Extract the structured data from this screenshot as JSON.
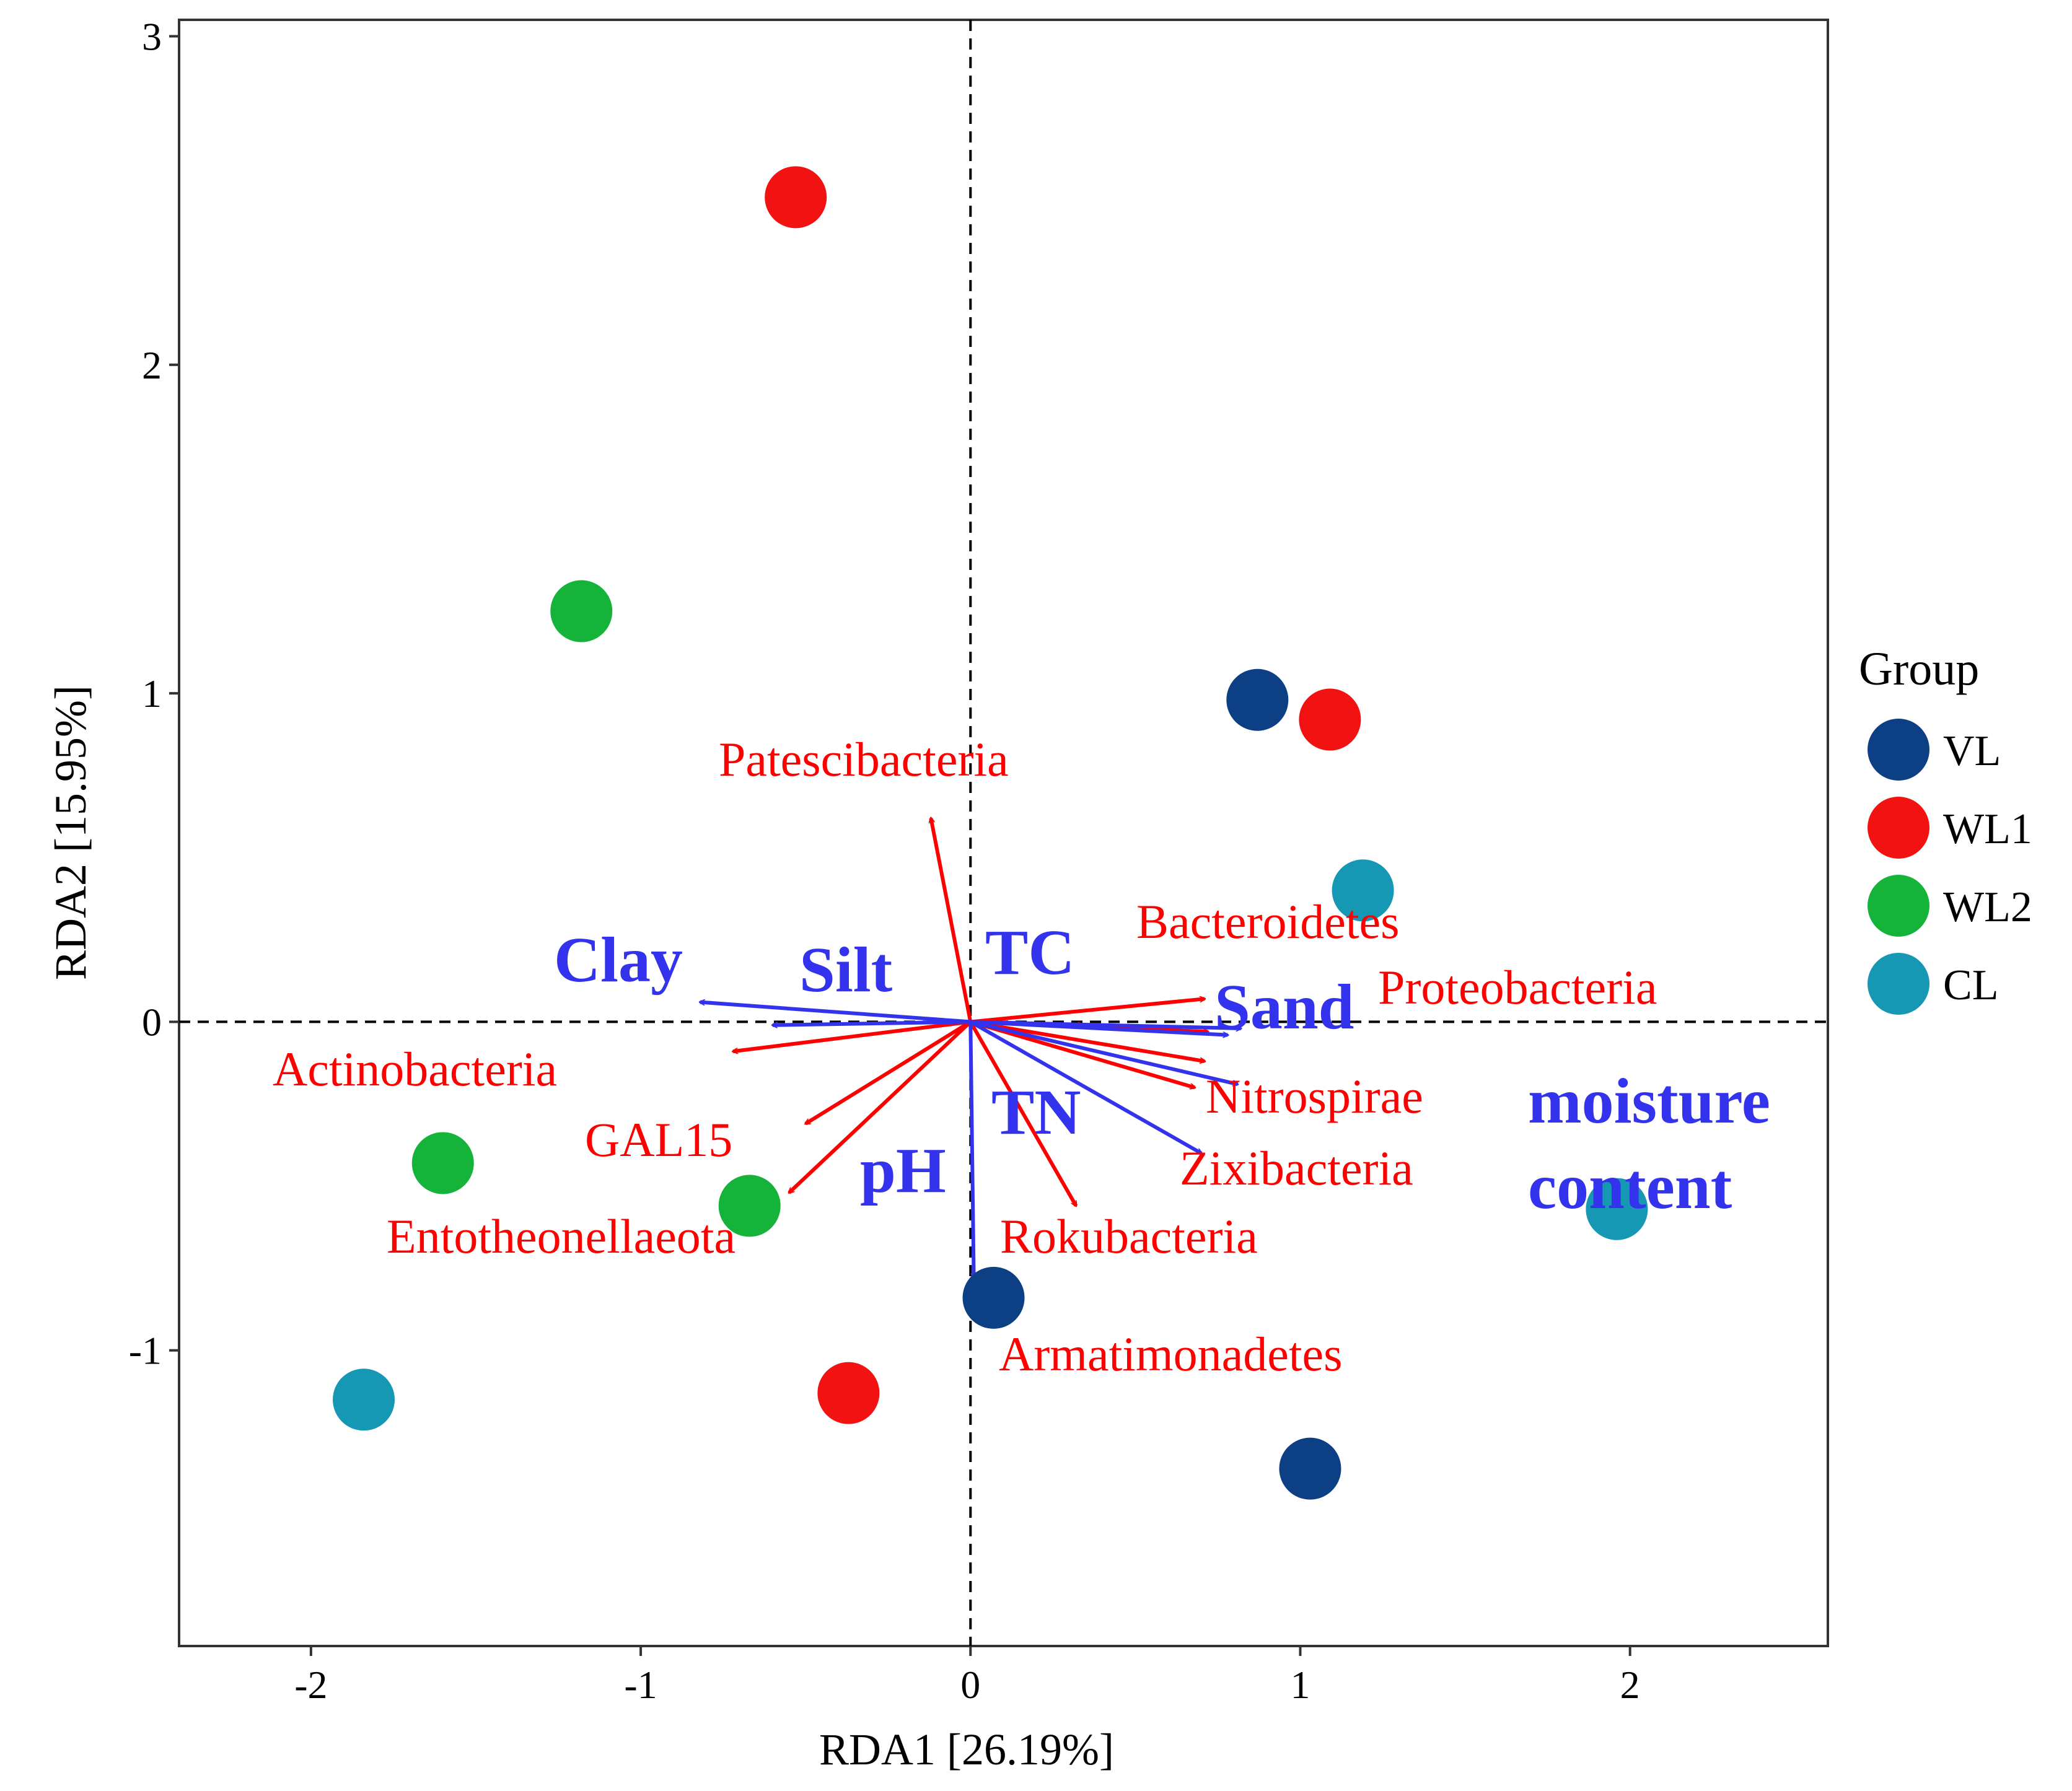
{
  "chart_data": {
    "type": "scatter",
    "subtype": "rda-biplot",
    "xlabel": "RDA1 [26.19%]",
    "ylabel": "RDA2 [15.95%]",
    "xlim": [
      -2.4,
      2.6
    ],
    "ylim": [
      -1.9,
      3.05
    ],
    "xticks": [
      -2,
      -1,
      0,
      1,
      2
    ],
    "yticks": [
      -1,
      0,
      1,
      2,
      3
    ],
    "xtick_labels": [
      "-2",
      "-1",
      "0",
      "1",
      "2"
    ],
    "ytick_labels": [
      "-1",
      "0",
      "1",
      "2",
      "3"
    ],
    "reference_lines": {
      "x": 0,
      "y": 0,
      "style": "dashed"
    },
    "grid": false,
    "legend": {
      "title": "Group",
      "placement": "right",
      "entries": [
        {
          "name": "VL",
          "color": "#0d3f84"
        },
        {
          "name": "WL1",
          "color": "#f21212"
        },
        {
          "name": "WL2",
          "color": "#16b33a"
        },
        {
          "name": "CL",
          "color": "#1697b3"
        }
      ]
    },
    "series": [
      {
        "name": "VL",
        "color": "#0d3f84",
        "points": [
          [
            0.87,
            0.98
          ],
          [
            0.07,
            -0.84
          ],
          [
            1.03,
            -1.36
          ]
        ]
      },
      {
        "name": "WL1",
        "color": "#f21212",
        "points": [
          [
            -0.53,
            2.51
          ],
          [
            1.09,
            0.92
          ],
          [
            -0.37,
            -1.13
          ]
        ]
      },
      {
        "name": "WL2",
        "color": "#16b33a",
        "points": [
          [
            -1.18,
            1.25
          ],
          [
            -1.6,
            -0.43
          ],
          [
            -0.67,
            -0.56
          ]
        ]
      },
      {
        "name": "CL",
        "color": "#1697b3",
        "points": [
          [
            1.19,
            0.4
          ],
          [
            1.96,
            -0.57
          ],
          [
            -1.84,
            -1.15
          ]
        ]
      }
    ],
    "species_arrows": {
      "color": "#ff0000",
      "items": [
        {
          "label": "Patescibacteria",
          "x": -0.12,
          "y": 0.62
        },
        {
          "label": "Bacteroidetes",
          "x": 0.71,
          "y": 0.07
        },
        {
          "label": "Proteobacteria",
          "x": 0.72,
          "y": -0.03
        },
        {
          "label": "Nitrospirae",
          "x": 0.71,
          "y": -0.12
        },
        {
          "label": "Zixibacteria",
          "x": 0.68,
          "y": -0.2
        },
        {
          "label": "Rokubacteria",
          "x": 0.32,
          "y": -0.56
        },
        {
          "label": "Armatimonadetes",
          "x": 0.34,
          "y": -0.01
        },
        {
          "label": "Actinobacteria",
          "x": -0.72,
          "y": -0.09
        },
        {
          "label": "GAL15",
          "x": -0.5,
          "y": -0.31
        },
        {
          "label": "Entotheonellaeota",
          "x": -0.55,
          "y": -0.52
        }
      ]
    },
    "env_arrows": {
      "color": "#3333ee",
      "items": [
        {
          "label": "Clay",
          "x": -0.82,
          "y": 0.06
        },
        {
          "label": "Silt",
          "x": -0.6,
          "y": -0.01
        },
        {
          "label": "TC",
          "x": 0.78,
          "y": -0.04
        },
        {
          "label": "Sand",
          "x": 0.82,
          "y": -0.02
        },
        {
          "label": "moisture",
          "label2": "content",
          "x": 0.81,
          "y": -0.19
        },
        {
          "label": "TN",
          "x": 0.7,
          "y": -0.4
        },
        {
          "label": "pH",
          "x": 0.01,
          "y": -0.78
        }
      ]
    }
  }
}
